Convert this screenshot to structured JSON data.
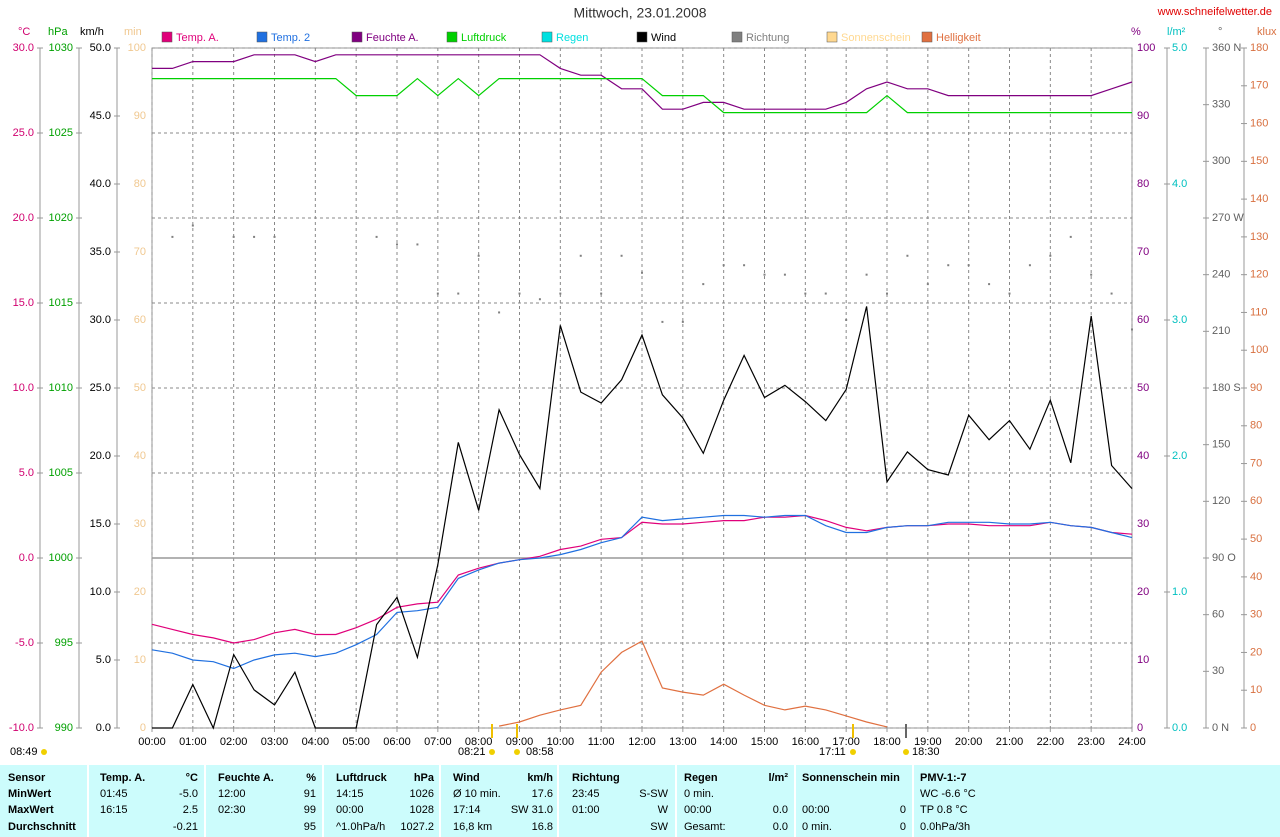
{
  "chart_data": {
    "type": "line",
    "title": "Mittwoch, 23.01.2008",
    "source": "www.schneifelwetter.de",
    "grid": true,
    "xlim": [
      0,
      24
    ],
    "xticks": [
      {
        "value": 0,
        "label": "00:00"
      },
      {
        "value": 1,
        "label": "01:00"
      },
      {
        "value": 2,
        "label": "02:00"
      },
      {
        "value": 3,
        "label": "03:00"
      },
      {
        "value": 4,
        "label": "04:00"
      },
      {
        "value": 5,
        "label": "05:00"
      },
      {
        "value": 6,
        "label": "06:00"
      },
      {
        "value": 7,
        "label": "07:00"
      },
      {
        "value": 8,
        "label": "08:00"
      },
      {
        "value": 9,
        "label": "09:00"
      },
      {
        "value": 10,
        "label": "10:00"
      },
      {
        "value": 11,
        "label": "11:00"
      },
      {
        "value": 12,
        "label": "12:00"
      },
      {
        "value": 13,
        "label": "13:00"
      },
      {
        "value": 14,
        "label": "14:00"
      },
      {
        "value": 15,
        "label": "15:00"
      },
      {
        "value": 16,
        "label": "16:00"
      },
      {
        "value": 17,
        "label": "17:00"
      },
      {
        "value": 18,
        "label": "18:00"
      },
      {
        "value": 19,
        "label": "19:00"
      },
      {
        "value": 20,
        "label": "20:00"
      },
      {
        "value": 21,
        "label": "21:00"
      },
      {
        "value": 22,
        "label": "22:00"
      },
      {
        "value": 23,
        "label": "23:00"
      },
      {
        "value": 24,
        "label": "24:00"
      }
    ],
    "x": [
      0,
      0.5,
      1,
      1.5,
      2,
      2.5,
      3,
      3.5,
      4,
      4.5,
      5,
      5.5,
      6,
      6.5,
      7,
      7.5,
      8,
      8.5,
      9,
      9.5,
      10,
      10.5,
      11,
      11.5,
      12,
      12.5,
      13,
      13.5,
      14,
      14.5,
      15,
      15.5,
      16,
      16.5,
      17,
      17.5,
      18,
      18.5,
      19,
      19.5,
      20,
      20.5,
      21,
      21.5,
      22,
      22.5,
      23,
      23.5,
      24
    ],
    "axes": [
      {
        "name": "°C",
        "color": "#d0006f",
        "lim": [
          -10,
          30
        ],
        "ticks": [
          {
            "value": -10,
            "label": "-10.0"
          },
          {
            "value": -5,
            "label": "-5.0"
          },
          {
            "value": 0,
            "label": "0.0"
          },
          {
            "value": 5,
            "label": "5.0"
          },
          {
            "value": 10,
            "label": "10.0"
          },
          {
            "value": 15,
            "label": "15.0"
          },
          {
            "value": 20,
            "label": "20.0"
          },
          {
            "value": 25,
            "label": "25.0"
          },
          {
            "value": 30,
            "label": "30.0"
          }
        ]
      },
      {
        "name": "hPa",
        "color": "#00a000",
        "lim": [
          990,
          1030
        ],
        "ticks": [
          990,
          995,
          1000,
          1005,
          1010,
          1015,
          1020,
          1025,
          1030
        ]
      },
      {
        "name": "km/h",
        "color": "#000000",
        "lim": [
          0,
          50
        ],
        "ticks": [
          {
            "value": 0,
            "label": "0.0"
          },
          {
            "value": 5,
            "label": "5.0"
          },
          {
            "value": 10,
            "label": "10.0"
          },
          {
            "value": 15,
            "label": "15.0"
          },
          {
            "value": 20,
            "label": "20.0"
          },
          {
            "value": 25,
            "label": "25.0"
          },
          {
            "value": 30,
            "label": "30.0"
          },
          {
            "value": 35,
            "label": "35.0"
          },
          {
            "value": 40,
            "label": "40.0"
          },
          {
            "value": 45,
            "label": "45.0"
          },
          {
            "value": 50,
            "label": "50.0"
          }
        ]
      },
      {
        "name": "min",
        "color": "#f0c890",
        "lim": [
          0,
          100
        ],
        "ticks": [
          0,
          10,
          20,
          30,
          40,
          50,
          60,
          70,
          80,
          90,
          100
        ]
      },
      {
        "name": "%",
        "color": "#800080",
        "lim": [
          0,
          100
        ],
        "ticks": [
          0,
          10,
          20,
          30,
          40,
          50,
          60,
          70,
          80,
          90,
          100
        ]
      },
      {
        "name": "l/m²",
        "color": "#00c0c0",
        "lim": [
          0,
          5
        ],
        "ticks": [
          {
            "value": 0,
            "label": "0.0"
          },
          {
            "value": 1,
            "label": "1.0"
          },
          {
            "value": 2,
            "label": "2.0"
          },
          {
            "value": 3,
            "label": "3.0"
          },
          {
            "value": 4,
            "label": "4.0"
          },
          {
            "value": 5,
            "label": "5.0"
          }
        ]
      },
      {
        "name": "°",
        "color": "#606060",
        "lim": [
          0,
          360
        ],
        "ticks": [
          {
            "value": 0,
            "label": "0 N"
          },
          30,
          60,
          {
            "value": 90,
            "label": "90 O"
          },
          120,
          150,
          {
            "value": 180,
            "label": "180 S"
          },
          210,
          240,
          {
            "value": 270,
            "label": "270 W"
          },
          300,
          330,
          {
            "value": 360,
            "label": "360 N"
          }
        ]
      },
      {
        "name": "klux",
        "color": "#d87040",
        "lim": [
          0,
          180
        ],
        "ticks": [
          0,
          10,
          20,
          30,
          40,
          50,
          60,
          70,
          80,
          90,
          100,
          110,
          120,
          130,
          140,
          150,
          160,
          170,
          180
        ]
      }
    ],
    "series": [
      {
        "name": "Temp. A.",
        "color": "#e0007a",
        "axis": 0,
        "values": [
          -3.9,
          -4.2,
          -4.5,
          -4.7,
          -5.0,
          -4.8,
          -4.4,
          -4.2,
          -4.5,
          -4.5,
          -4.1,
          -3.6,
          -2.9,
          -2.7,
          -2.6,
          -1.0,
          -0.6,
          -0.3,
          -0.1,
          0.1,
          0.5,
          0.7,
          1.1,
          1.2,
          2.1,
          2.0,
          2.0,
          2.1,
          2.2,
          2.2,
          2.4,
          2.4,
          2.5,
          2.2,
          1.8,
          1.6,
          1.8,
          1.9,
          1.9,
          2.0,
          2.0,
          1.9,
          1.9,
          1.9,
          2.1,
          1.9,
          1.8,
          1.5,
          1.4
        ]
      },
      {
        "name": "Temp. 2",
        "color": "#2070e0",
        "axis": 0,
        "values": [
          -5.4,
          -5.6,
          -6.0,
          -6.1,
          -6.5,
          -6.0,
          -5.7,
          -5.6,
          -5.8,
          -5.6,
          -5.1,
          -4.5,
          -3.2,
          -3.1,
          -2.9,
          -1.2,
          -0.7,
          -0.3,
          -0.1,
          0.0,
          0.2,
          0.5,
          0.9,
          1.2,
          2.4,
          2.2,
          2.3,
          2.4,
          2.5,
          2.5,
          2.4,
          2.5,
          2.5,
          1.9,
          1.5,
          1.5,
          1.8,
          1.9,
          1.9,
          2.1,
          2.1,
          2.1,
          2.0,
          2.0,
          2.1,
          1.9,
          1.8,
          1.5,
          1.2
        ]
      },
      {
        "name": "Feuchte A.",
        "color": "#800080",
        "axis": 4,
        "values": [
          97,
          97,
          98,
          98,
          98,
          99,
          99,
          99,
          98,
          99,
          99,
          99,
          99,
          99,
          99,
          99,
          99,
          99,
          99,
          99,
          97,
          96,
          96,
          94,
          94,
          91,
          91,
          92,
          92,
          91,
          91,
          91,
          91,
          91,
          92,
          94,
          95,
          94,
          94,
          93,
          93,
          93,
          93,
          93,
          93,
          93,
          93,
          94,
          95
        ]
      },
      {
        "name": "Luftdruck",
        "color": "#00d000",
        "axis": 1,
        "values": [
          1028.2,
          1028.2,
          1028.2,
          1028.2,
          1028.2,
          1028.2,
          1028.2,
          1028.2,
          1028.2,
          1028.2,
          1027.2,
          1027.2,
          1027.2,
          1028.2,
          1027.2,
          1028.2,
          1027.2,
          1028.2,
          1028.2,
          1028.2,
          1028.2,
          1028.2,
          1028.2,
          1028.2,
          1028.2,
          1027.2,
          1027.2,
          1027.2,
          1026.2,
          1026.2,
          1026.2,
          1026.2,
          1026.2,
          1026.2,
          1026.2,
          1026.2,
          1027.2,
          1026.2,
          1026.2,
          1026.2,
          1026.2,
          1026.2,
          1026.2,
          1026.2,
          1026.2,
          1026.2,
          1026.2,
          1026.2,
          1026.2
        ]
      },
      {
        "name": "Regen",
        "color": "#00e0e0"
      },
      {
        "name": "Wind",
        "color": "#000000",
        "axis": 2,
        "values": [
          0,
          0,
          3.2,
          0,
          5.4,
          2.8,
          1.7,
          4.1,
          0,
          0,
          0,
          7.6,
          9.6,
          5.2,
          12.0,
          21.0,
          16.0,
          23.4,
          20.1,
          17.6,
          29.6,
          24.7,
          23.9,
          25.6,
          28.9,
          24.5,
          22.8,
          20.2,
          24.1,
          27.4,
          24.3,
          25.2,
          24.0,
          22.6,
          24.9,
          31.0,
          18.1,
          20.3,
          19.0,
          18.6,
          23.0,
          21.2,
          22.6,
          20.5,
          24.1,
          19.5,
          30.3,
          19.3,
          17.6
        ]
      },
      {
        "name": "Richtung",
        "color": "#808080",
        "axis": 6,
        "marker": "dots",
        "values": [
          null,
          260,
          266,
          null,
          260,
          260,
          260,
          null,
          null,
          null,
          null,
          260,
          256,
          256,
          230,
          230,
          250,
          220,
          230,
          227,
          230,
          250,
          230,
          250,
          241,
          215,
          215,
          235,
          245,
          245,
          240,
          240,
          230,
          230,
          216,
          240,
          230,
          250,
          235,
          245,
          245,
          235,
          230,
          245,
          250,
          260,
          240,
          230,
          211
        ]
      },
      {
        "name": "Sonnenschein",
        "color": "#ffd890"
      },
      {
        "name": "Helligkeit",
        "color": "#e07040",
        "axis": 7,
        "values": [
          null,
          null,
          null,
          null,
          null,
          null,
          null,
          null,
          null,
          null,
          null,
          null,
          null,
          null,
          null,
          null,
          null,
          0.5,
          1.6,
          3.4,
          4.8,
          6.0,
          14.8,
          20.0,
          23.0,
          10.6,
          9.5,
          8.7,
          11.6,
          8.7,
          6.0,
          4.8,
          5.8,
          4.8,
          3.2,
          1.6,
          0.3,
          null,
          null,
          null,
          null,
          null,
          null,
          null,
          null,
          null,
          null,
          null,
          null
        ]
      }
    ],
    "annotations": [
      "08:49",
      "08:21",
      "08:58",
      "17:11",
      "18:30"
    ]
  },
  "stats": {
    "rows": [
      [
        "Sensor",
        "Temp. A.",
        "°C",
        "Feuchte A.",
        "%",
        "Luftdruck",
        "hPa",
        "Wind",
        "km/h",
        "Richtung",
        null,
        "Regen",
        "l/m²",
        "Sonnenschein min",
        null,
        "PMV-1:-7"
      ],
      [
        "MinWert",
        "01:45",
        "-5.0",
        "12:00",
        "91",
        "14:15",
        "1026",
        "Ø 10 min.",
        "17.6",
        "23:45",
        "S-SW",
        "0 min.",
        null,
        null,
        null,
        "WC -6.6 °C"
      ],
      [
        "MaxWert",
        "16:15",
        "2.5",
        "02:30",
        "99",
        "00:00",
        "1028",
        "17:14",
        "SW 31.0",
        "01:00",
        "W",
        "00:00",
        "0.0",
        "00:00",
        "0",
        "TP 0.8 °C"
      ],
      [
        "Durchschnitt",
        null,
        "-0.21",
        null,
        "95",
        "^1.0hPa/h",
        "1027.2",
        "16,8 km",
        "16.8",
        null,
        "SW",
        "Gesamt:",
        "0.0",
        "0 min.",
        "0",
        "0.0hPa/3h"
      ]
    ]
  }
}
